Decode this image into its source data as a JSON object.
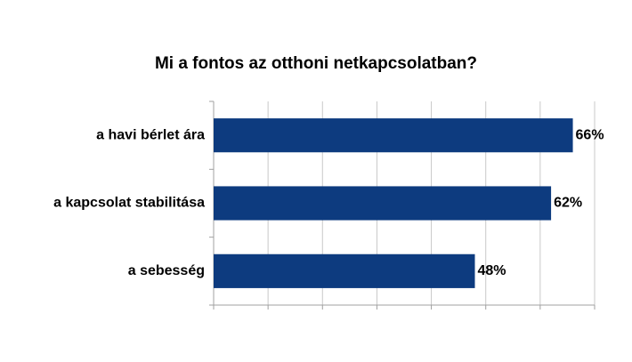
{
  "chart_data": {
    "type": "bar",
    "orientation": "horizontal",
    "title": "Mi a fontos az otthoni netkapcsolatban?",
    "categories": [
      "a havi bérlet ára",
      "a kapcsolat stabilitása",
      "a sebesség"
    ],
    "values": [
      66,
      62,
      48
    ],
    "value_labels": [
      "66%",
      "62%",
      "48%"
    ],
    "xlim": [
      0,
      70
    ],
    "xticks": [
      0,
      10,
      20,
      30,
      40,
      50,
      60,
      70
    ],
    "xtick_labels_visible": false,
    "grid": true,
    "legend": "none",
    "colors": {
      "bar": "#0d3b7f",
      "grid": "#c8c8c8",
      "axis": "#a0a0a0"
    }
  }
}
